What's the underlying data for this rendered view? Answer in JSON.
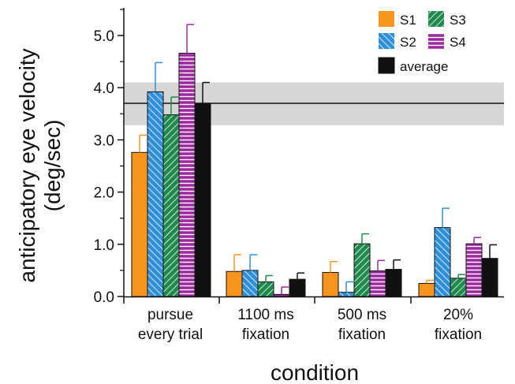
{
  "chart_data": {
    "type": "bar",
    "xlabel": "condition",
    "ylabel_line1": "anticipatory eye velocity",
    "ylabel_line2": "(deg/sec)",
    "ylim": [
      0,
      5.5
    ],
    "y_ticks": [
      "0.0",
      "1.0",
      "2.0",
      "3.0",
      "4.0",
      "5.0"
    ],
    "categories": [
      [
        "pursue",
        "every trial"
      ],
      [
        "1100 ms",
        "fixation"
      ],
      [
        "500 ms",
        "fixation"
      ],
      [
        "20%",
        "fixation"
      ]
    ],
    "reference": {
      "value": 3.7,
      "band": [
        3.28,
        4.1
      ]
    },
    "series": [
      {
        "name": "S1",
        "values": [
          2.76,
          0.48,
          0.46,
          0.25
        ],
        "errors": [
          0.33,
          0.32,
          0.21,
          0.06
        ],
        "color": "#f7941d",
        "pattern": "solid"
      },
      {
        "name": "S2",
        "values": [
          3.92,
          0.5,
          0.08,
          1.32
        ],
        "errors": [
          0.56,
          0.3,
          0.2,
          0.37
        ],
        "color": "#2f8fd8",
        "pattern": "diag-back"
      },
      {
        "name": "S3",
        "values": [
          3.48,
          0.28,
          1.01,
          0.35
        ],
        "errors": [
          0.34,
          0.12,
          0.19,
          0.07
        ],
        "color": "#1f8a4c",
        "pattern": "diag-fwd"
      },
      {
        "name": "S4",
        "values": [
          4.66,
          0.04,
          0.49,
          1.01
        ],
        "errors": [
          0.55,
          0.14,
          0.2,
          0.12
        ],
        "color": "#9b2a9e",
        "pattern": "horizontal"
      },
      {
        "name": "average",
        "values": [
          3.7,
          0.33,
          0.52,
          0.73
        ],
        "errors": [
          0.4,
          0.12,
          0.18,
          0.26
        ],
        "color": "#111111",
        "pattern": "solid"
      }
    ],
    "legend_position": "top-right"
  }
}
